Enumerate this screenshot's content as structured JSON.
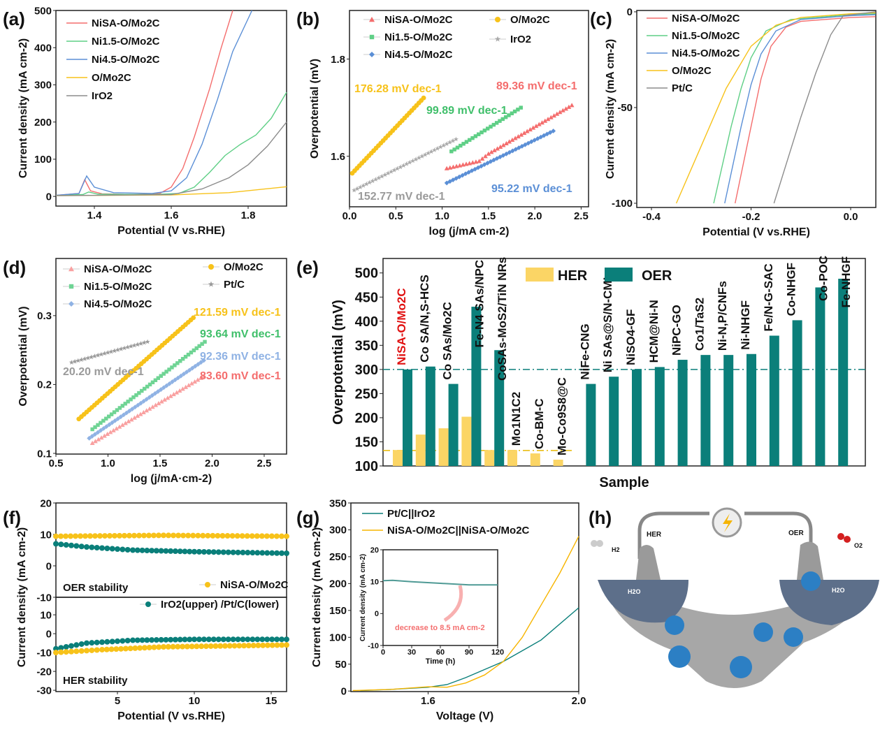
{
  "panel_labels": [
    "(a)",
    "(b)",
    "(c)",
    "(d)",
    "(e)",
    "(f)",
    "(g)",
    "(h)"
  ],
  "colors": {
    "NiSA": "#f46d6d",
    "Ni1.5": "#5fcf86",
    "Ni4.5": "#5b8fd6",
    "OMo2C": "#f7c21a",
    "gray": "#8c8c8c",
    "teal": "#0a7f7a",
    "her": "#fbd565",
    "oer": "#0b7f7a"
  },
  "chart_data": [
    {
      "type": "line",
      "xlabel": "Potential (V vs.RHE)",
      "ylabel": "Current density (mA cm-2)",
      "xlim": [
        1.3,
        1.9
      ],
      "ylim": [
        -26,
        500
      ],
      "xticks": [
        1.4,
        1.6,
        1.8
      ],
      "xtick_labels": [
        "1.4",
        "1.6",
        "1.8"
      ],
      "yticks": [
        0,
        100,
        200,
        300,
        400,
        500
      ],
      "ytick_labels": [
        "0",
        "100",
        "200",
        "300",
        "400",
        "500"
      ],
      "series": [
        {
          "name": "NiSA-O/Mo2C",
          "color": "#f46d6d",
          "style": "line",
          "x": [
            1.3,
            1.36,
            1.375,
            1.39,
            1.42,
            1.5,
            1.57,
            1.6,
            1.63,
            1.66,
            1.7,
            1.73,
            1.76
          ],
          "y": [
            3,
            8,
            45,
            15,
            7,
            5,
            8,
            25,
            75,
            160,
            290,
            400,
            500
          ]
        },
        {
          "name": "Ni1.5-O/Mo2C",
          "color": "#5fcf86",
          "style": "line",
          "x": [
            1.3,
            1.37,
            1.385,
            1.41,
            1.55,
            1.62,
            1.66,
            1.7,
            1.74,
            1.78,
            1.82,
            1.86,
            1.9
          ],
          "y": [
            3,
            5,
            12,
            6,
            5,
            8,
            25,
            65,
            110,
            140,
            165,
            210,
            280
          ]
        },
        {
          "name": "Ni4.5-O/Mo2C",
          "color": "#5b8fd6",
          "style": "line",
          "x": [
            1.3,
            1.36,
            1.38,
            1.4,
            1.45,
            1.55,
            1.6,
            1.64,
            1.68,
            1.72,
            1.76,
            1.81
          ],
          "y": [
            3,
            8,
            55,
            25,
            10,
            8,
            15,
            50,
            140,
            260,
            390,
            500
          ]
        },
        {
          "name": "O/Mo2C",
          "color": "#f7c21a",
          "style": "line",
          "x": [
            1.3,
            1.6,
            1.75,
            1.9
          ],
          "y": [
            2,
            4,
            10,
            26
          ]
        },
        {
          "name": "IrO2",
          "color": "#8c8c8c",
          "style": "line",
          "x": [
            1.3,
            1.6,
            1.68,
            1.75,
            1.8,
            1.85,
            1.9
          ],
          "y": [
            2,
            5,
            20,
            50,
            85,
            135,
            200
          ]
        }
      ],
      "annotations": []
    },
    {
      "type": "scatter",
      "xlabel": "log (j/mA cm-2)",
      "ylabel": "Overpotential (mV)",
      "xlim": [
        0,
        2.58
      ],
      "ylim": [
        1.496,
        1.9
      ],
      "xticks": [
        0,
        0.5,
        1,
        1.5,
        2,
        2.5
      ],
      "xtick_labels": [
        "0.0",
        "0.5",
        "1.0",
        "1.5",
        "2.0",
        "2.5"
      ],
      "yticks": [
        1.6,
        1.8
      ],
      "ytick_labels": [
        "1.6",
        "1.8"
      ],
      "series": [
        {
          "name": "NiSA-O/Mo2C",
          "color": "#f46d6d",
          "style": "markers",
          "marker": "triangle",
          "x": [
            1.05,
            1.4,
            1.5,
            2.4
          ],
          "y": [
            1.575,
            1.59,
            1.605,
            1.705
          ]
        },
        {
          "name": "Ni1.5-O/Mo2C",
          "color": "#5fcf86",
          "style": "markers",
          "marker": "square",
          "x": [
            1.1,
            1.85
          ],
          "y": [
            1.61,
            1.7
          ]
        },
        {
          "name": "Ni4.5-O/Mo2C",
          "color": "#5b8fd6",
          "style": "markers",
          "marker": "diamond",
          "x": [
            1.05,
            2.2
          ],
          "y": [
            1.545,
            1.652
          ]
        },
        {
          "name": "O/Mo2C",
          "color": "#f7c21a",
          "style": "markers",
          "marker": "circle",
          "x": [
            0.03,
            0.8
          ],
          "y": [
            1.565,
            1.72
          ]
        },
        {
          "name": "IrO2",
          "color": "#aaaaaa",
          "style": "markers",
          "marker": "star",
          "x": [
            0.05,
            1.15
          ],
          "y": [
            1.53,
            1.635
          ]
        }
      ],
      "annotations": [
        {
          "text": "176.28 mV dec-1",
          "color": "#f7c21a"
        },
        {
          "text": "99.89 mV dec-1",
          "color": "#3fbf6a"
        },
        {
          "text": "89.36 mV dec-1",
          "color": "#f46d6d"
        },
        {
          "text": "152.77 mV dec-1",
          "color": "#9a9a9a"
        },
        {
          "text": "95.22 mV dec-1",
          "color": "#5b8fd6"
        }
      ]
    },
    {
      "type": "line",
      "xlabel": "Potential (V vs.RHE)",
      "ylabel": "Current density (mA cm-2)",
      "xlim": [
        -0.4295,
        0.0505
      ],
      "ylim": [
        -102.2,
        0.7
      ],
      "xticks": [
        -0.4,
        -0.2,
        0
      ],
      "xtick_labels": [
        "-0.4",
        "-0.2",
        "0.0"
      ],
      "yticks": [
        -100,
        -50,
        0
      ],
      "ytick_labels": [
        "-100",
        "-50",
        "0"
      ],
      "series": [
        {
          "name": "NiSA-O/Mo2C",
          "color": "#f46d6d",
          "style": "line",
          "x": [
            -0.232,
            -0.2,
            -0.18,
            -0.16,
            -0.13,
            -0.1,
            0,
            0.05
          ],
          "y": [
            -100,
            -60,
            -35,
            -18,
            -8,
            -5,
            -3,
            -2.5
          ]
        },
        {
          "name": "Ni1.5-O/Mo2C",
          "color": "#5fcf86",
          "style": "line",
          "x": [
            -0.275,
            -0.24,
            -0.22,
            -0.2,
            -0.17,
            -0.12,
            0,
            0.05
          ],
          "y": [
            -100,
            -60,
            -40,
            -24,
            -10,
            -4,
            -1.5,
            -1
          ]
        },
        {
          "name": "Ni4.5-O/Mo2C",
          "color": "#5b8fd6",
          "style": "line",
          "x": [
            -0.253,
            -0.22,
            -0.2,
            -0.18,
            -0.15,
            -0.1,
            0,
            0.05
          ],
          "y": [
            -100,
            -60,
            -38,
            -22,
            -10,
            -4,
            -2,
            -1.5
          ]
        },
        {
          "name": "O/Mo2C",
          "color": "#f7c21a",
          "style": "line",
          "x": [
            -0.35,
            -0.3,
            -0.25,
            -0.2,
            -0.15,
            -0.1,
            0,
            0.05
          ],
          "y": [
            -100,
            -70,
            -40,
            -18,
            -7,
            -3,
            -1,
            -0.5
          ]
        },
        {
          "name": "Pt/C",
          "color": "#8c8c8c",
          "style": "line",
          "x": [
            -0.154,
            -0.13,
            -0.1,
            -0.07,
            -0.04,
            -0.015,
            0.05
          ],
          "y": [
            -100,
            -80,
            -55,
            -32,
            -12,
            -2,
            0
          ]
        }
      ],
      "annotations": []
    },
    {
      "type": "scatter",
      "xlabel": "log (j/mA·cm-2)",
      "ylabel": "Overpotential (mV)",
      "xlim": [
        0.5,
        2.715
      ],
      "ylim": [
        0.099,
        0.383
      ],
      "xticks": [
        0.5,
        1,
        1.5,
        2,
        2.5
      ],
      "xtick_labels": [
        "0.5",
        "1.0",
        "1.5",
        "2.0",
        "2.5"
      ],
      "yticks": [
        0.1,
        0.2,
        0.3
      ],
      "ytick_labels": [
        "0.1",
        "0.2",
        "0.3"
      ],
      "series": [
        {
          "name": "NiSA-O/Mo2C",
          "color": "#f9a0a0",
          "style": "markers",
          "marker": "triangle",
          "x": [
            0.85,
            1.92
          ],
          "y": [
            0.115,
            0.212
          ]
        },
        {
          "name": "Ni1.5-O/Mo2C",
          "color": "#6fd494",
          "style": "markers",
          "marker": "square",
          "x": [
            0.85,
            1.93
          ],
          "y": [
            0.135,
            0.262
          ]
        },
        {
          "name": "Ni4.5-O/Mo2C",
          "color": "#8fb2e4",
          "style": "markers",
          "marker": "diamond",
          "x": [
            0.82,
            1.92
          ],
          "y": [
            0.122,
            0.235
          ]
        },
        {
          "name": "O/Mo2C",
          "color": "#f7c21a",
          "style": "markers",
          "marker": "circle",
          "x": [
            0.72,
            1.82
          ],
          "y": [
            0.15,
            0.297
          ]
        },
        {
          "name": "Pt/C",
          "color": "#9a9a9a",
          "style": "markers",
          "marker": "star",
          "x": [
            0.65,
            1.38
          ],
          "y": [
            0.232,
            0.262
          ]
        }
      ],
      "annotations": [
        {
          "text": "121.59 mV dec-1",
          "color": "#f7c21a"
        },
        {
          "text": "93.64 mV dec-1",
          "color": "#3fbf6a"
        },
        {
          "text": "92.36 mV dec-1",
          "color": "#8fb2e4"
        },
        {
          "text": "83.60 mV dec-1",
          "color": "#f46d6d"
        },
        {
          "text": "20.20 mV dec-1",
          "color": "#9a9a9a"
        }
      ]
    },
    {
      "type": "bar",
      "xlabel": "Sample",
      "ylabel": "Overpotential (mV)",
      "ylim": [
        100,
        530
      ],
      "yticks": [
        100,
        150,
        200,
        250,
        300,
        350,
        400,
        450,
        500
      ],
      "ytick_labels": [
        "100",
        "150",
        "200",
        "250",
        "300",
        "350",
        "400",
        "450",
        "500"
      ],
      "legend": [
        "HER",
        "OER"
      ],
      "categories": [
        "NiSA-O/Mo2C",
        "Co SA/N,S-HCS",
        "Co SAs/Mo2C",
        "Fe-N4 SAs/NPC",
        "CoSAs-MoS2/TiN NRs",
        "Mo1N1C2",
        "Co-BM-C",
        "Mo-Co9S8@C",
        "NiFe-CNG",
        "Ni SAs@S/N-CMI",
        "NiSO4-GF",
        "HCM@Ni-N",
        "NiPC-GO",
        "Co1/TaS2",
        "Ni-N,P/CNFs",
        "Ni-NHGF",
        "Fe/N-G-SAC",
        "Co-NHGF",
        "Co-POC",
        "Fe-NHGF"
      ],
      "series": [
        {
          "name": "HER",
          "color": "#fbd565",
          "values": [
            133,
            165,
            178,
            202,
            133,
            133,
            126,
            113,
            null,
            null,
            null,
            null,
            null,
            null,
            null,
            null,
            null,
            null,
            null,
            null
          ]
        },
        {
          "name": "OER",
          "color": "#0b7f7a",
          "values": [
            300,
            306,
            270,
            430,
            340,
            null,
            null,
            null,
            270,
            285,
            300,
            305,
            320,
            330,
            330,
            332,
            370,
            402,
            470,
            488
          ]
        }
      ],
      "reference_lines": [
        {
          "value": 300,
          "color": "#0b7f7a",
          "style": "dash-dot"
        },
        {
          "value": 132,
          "color": "#e8b800",
          "style": "dash-dot"
        }
      ]
    },
    {
      "type": "scatter",
      "xlabel": "",
      "ylabel": "Current density (mA cm-2)",
      "xlim": [
        1,
        16
      ],
      "ylim": [
        -10,
        20
      ],
      "xticks": [],
      "xtick_labels": [],
      "yticks": [
        -10,
        0,
        10,
        20
      ],
      "ytick_labels": [
        "-10",
        "0",
        "10",
        "20"
      ],
      "label": "OER stability",
      "series": [
        {
          "name": "NiSA-O/Mo2C",
          "color": "#f7c21a",
          "style": "markers",
          "marker": "circle",
          "x": [
            1,
            8,
            16
          ],
          "y": [
            9.4,
            9.7,
            9.4
          ]
        },
        {
          "name": "",
          "color": "#0a7f7a",
          "style": "markers",
          "marker": "circle",
          "x": [
            1,
            3,
            6,
            10,
            16
          ],
          "y": [
            7,
            6,
            5,
            4.5,
            4
          ]
        }
      ],
      "annotations": []
    },
    {
      "type": "scatter",
      "xlabel": "Potential (V vs.RHE)",
      "ylabel": "",
      "xlim": [
        1,
        16
      ],
      "ylim": [
        -30.7,
        19.3
      ],
      "xticks": [
        5,
        10,
        15
      ],
      "xtick_labels": [
        "5",
        "10",
        "15"
      ],
      "yticks": [
        -30,
        -20,
        -10,
        0,
        10
      ],
      "ytick_labels": [
        "-30",
        "-20",
        "-10",
        "0",
        "10"
      ],
      "label": "HER stability",
      "series": [
        {
          "name": "IrO2(upper) /Pt/C(lower)",
          "color": "#0a7f7a",
          "style": "markers",
          "marker": "circle",
          "x": [
            1,
            3,
            6,
            10,
            16
          ],
          "y": [
            -8,
            -5,
            -3.5,
            -3,
            -3
          ]
        },
        {
          "name": "",
          "color": "#f7c21a",
          "style": "markers",
          "marker": "circle",
          "x": [
            1,
            4,
            8,
            12,
            16
          ],
          "y": [
            -10,
            -8.5,
            -7,
            -6.5,
            -6
          ]
        }
      ],
      "annotations": []
    },
    {
      "type": "line",
      "xlabel": "Voltage (V)",
      "ylabel": "Current density (mA cm-2)",
      "xlim": [
        1.395,
        2.0
      ],
      "ylim": [
        -1,
        350
      ],
      "xticks": [
        1.6,
        2.0
      ],
      "xtick_labels": [
        "1.6",
        "2.0"
      ],
      "yticks": [
        0,
        50,
        100,
        150,
        200,
        250,
        300,
        350
      ],
      "ytick_labels": [
        "0",
        "50",
        "100",
        "150",
        "200",
        "250",
        "300",
        "350"
      ],
      "series": [
        {
          "name": "Pt/C||IrO2",
          "color": "#0a7f7a",
          "style": "line",
          "x": [
            1.42,
            1.5,
            1.6,
            1.65,
            1.7,
            1.8,
            1.9,
            2.0
          ],
          "y": [
            1,
            3,
            7,
            12,
            25,
            55,
            95,
            155
          ]
        },
        {
          "name": "NiSA-O/Mo2C||NiSA-O/Mo2C",
          "color": "#f7b500",
          "style": "line",
          "x": [
            1.4,
            1.5,
            1.6,
            1.65,
            1.7,
            1.75,
            1.8,
            1.85,
            1.9,
            1.95,
            2.0
          ],
          "y": [
            1,
            3,
            8,
            7,
            15,
            30,
            55,
            100,
            160,
            220,
            288
          ]
        }
      ],
      "annotations": []
    },
    {
      "type": "line",
      "xlabel": "Time (h)",
      "ylabel": "Current density (mA cm-2)",
      "xlim": [
        0,
        120
      ],
      "ylim": [
        -10,
        20
      ],
      "xticks": [
        0,
        30,
        60,
        90,
        120
      ],
      "xtick_labels": [
        "0",
        "30",
        "60",
        "90",
        "120"
      ],
      "yticks": [
        -10,
        0,
        10,
        20
      ],
      "ytick_labels": [
        "-10",
        "0",
        "10",
        "20"
      ],
      "series": [
        {
          "name": "",
          "color": "#4f9a95",
          "style": "line",
          "x": [
            0,
            10,
            30,
            60,
            90,
            120
          ],
          "y": [
            10.3,
            10.4,
            10,
            9.5,
            9,
            9
          ]
        }
      ],
      "annotations": [
        {
          "text": "decrease to 8.5 mA cm-2",
          "color": "#f47070"
        }
      ]
    }
  ],
  "illustration": {
    "her_label": "HER",
    "oer_label": "OER",
    "h2_label": "H2",
    "o2_label": "O2",
    "h2o_left": "H2O",
    "h2o_right": "H2O",
    "power_icon": "lightning-icon"
  }
}
